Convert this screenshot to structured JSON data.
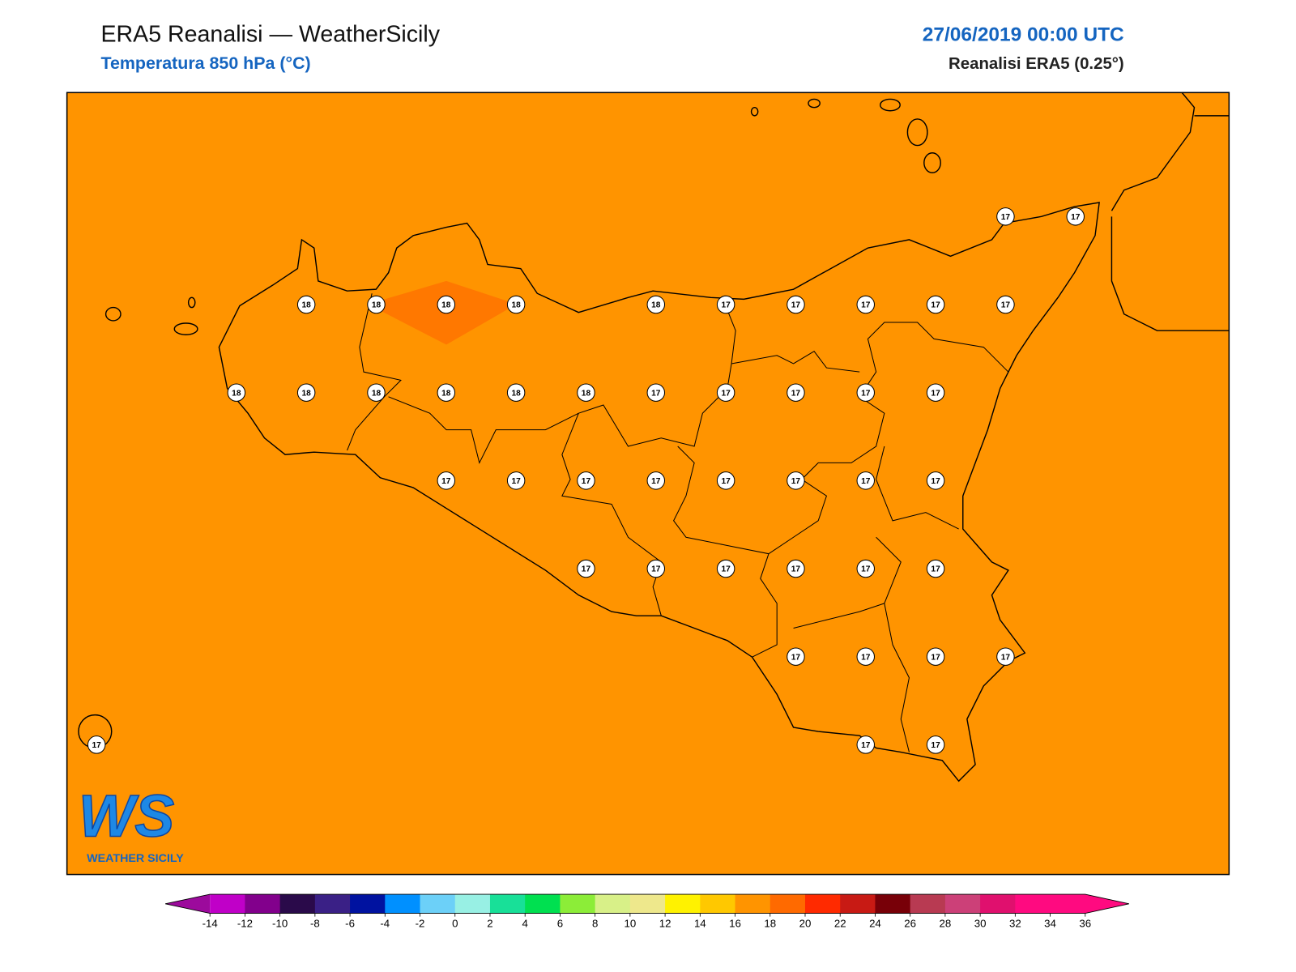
{
  "header": {
    "title": "ERA5 Reanalisi — WeatherSicily",
    "subtitle": "Temperatura 850 hPa (°C)",
    "date": "27/06/2019 00:00 UTC",
    "source": "Reanalisi ERA5 (0.25°)"
  },
  "map": {
    "field_color": "#ff9400",
    "patch_color": "#ff7800",
    "stations": [
      17,
      17,
      18,
      18,
      18,
      18,
      18,
      17,
      17,
      17,
      17,
      17,
      18,
      18,
      18,
      18,
      18,
      18,
      17,
      17,
      17,
      17,
      17,
      17,
      17,
      17,
      17,
      17,
      17,
      17,
      17,
      17,
      17,
      17,
      17,
      17,
      17,
      17,
      17,
      17,
      17,
      17,
      17,
      17
    ]
  },
  "colorbar": {
    "ticks": [
      -14,
      -12,
      -10,
      -8,
      -6,
      -4,
      -2,
      0,
      2,
      4,
      6,
      8,
      10,
      12,
      14,
      16,
      18,
      20,
      22,
      24,
      26,
      28,
      30,
      32,
      34,
      36
    ],
    "colors": [
      "#c000c8",
      "#82008c",
      "#2a0a4a",
      "#3a2086",
      "#0012a0",
      "#0090ff",
      "#6cd0f8",
      "#98f0e4",
      "#18e098",
      "#00e050",
      "#8ced38",
      "#d8f088",
      "#eee88c",
      "#fff200",
      "#ffc800",
      "#ff9400",
      "#ff6a00",
      "#ff2a00",
      "#c81a14",
      "#780008",
      "#b83a52",
      "#cc4078",
      "#e0106e",
      "#ff0a80",
      "#ff0a80"
    ],
    "extend_colors": [
      "#9c0a9c",
      "#ff0a80"
    ]
  },
  "logo": {
    "mark": "WS",
    "name": "WEATHER SICILY"
  }
}
